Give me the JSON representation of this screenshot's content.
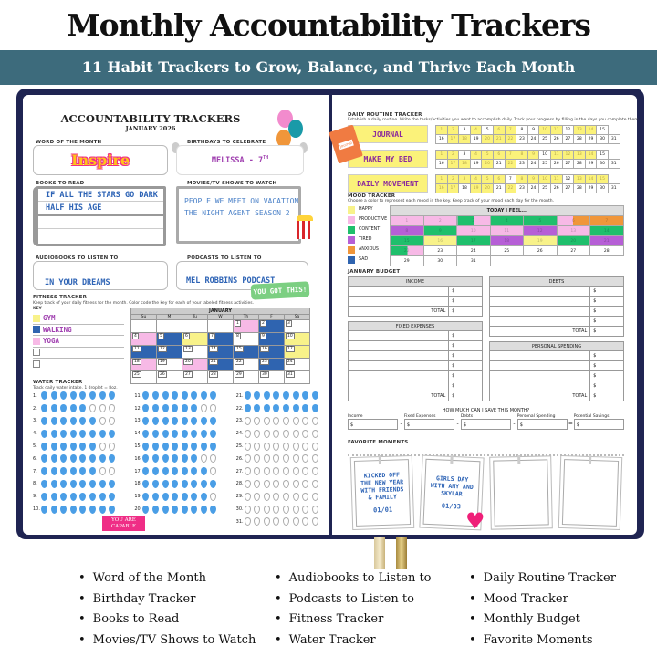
{
  "header": {
    "title": "Monthly Accountability Trackers",
    "subtitle": "11 Habit Trackers to Grow, Balance, and Thrive Each Month"
  },
  "left": {
    "title": "ACCOUNTABILITY TRACKERS",
    "month": "JANUARY 2026",
    "word": {
      "label": "WORD OF THE MONTH",
      "value": "Inspire"
    },
    "birthdays": {
      "label": "BIRTHDAYS TO CELEBRATE",
      "value": "MELISSA - 7",
      "sup": "TH"
    },
    "books": {
      "label": "BOOKS TO READ",
      "items": [
        "IF ALL THE STARS GO DARK",
        "HALF HIS AGE"
      ]
    },
    "movies": {
      "label": "MOVIES/TV SHOWS TO WATCH",
      "items": [
        "PEOPLE WE MEET ON VACATION",
        "THE NIGHT AGENT SEASON 2"
      ]
    },
    "audiobooks": {
      "label": "AUDIOBOOKS TO LISTEN TO",
      "value": "IN YOUR DREAMS"
    },
    "podcasts": {
      "label": "PODCASTS TO LISTEN TO",
      "value": "MEL ROBBINS PODCAST"
    },
    "sticker": "YOU GOT THIS!",
    "fitness": {
      "label": "FITNESS TRACKER",
      "desc": "Keep track of your daily fitness for the month. Color code the key for each of your labeled fitness activities.",
      "key_label": "KEY",
      "key": [
        {
          "name": "GYM",
          "color": "#f8f28a"
        },
        {
          "name": "WALKING",
          "color": "#2f64b0"
        },
        {
          "name": "YOGA",
          "color": "#f7b9e6"
        },
        {
          "name": "",
          "color": ""
        },
        {
          "name": "",
          "color": ""
        }
      ],
      "month": "JANUARY",
      "weekdays": [
        "Su",
        "M",
        "Tu",
        "W",
        "Th",
        "F",
        "Sa"
      ],
      "first_weekday": 4,
      "days": {
        "1": "YOGA",
        "2": "WALKING",
        "4": "YOGA",
        "5": "WALKING",
        "6": "GYM",
        "7": "WALKING",
        "9": "WALKING",
        "10": "GYM",
        "11": "WALKING",
        "12": "WALKING",
        "14": "WALKING",
        "15": "WALKING",
        "16": "WALKING",
        "17": "GYM",
        "18": "YOGA",
        "20": "YOGA",
        "21": "WALKING",
        "23": "WALKING"
      }
    },
    "water": {
      "label": "WATER TRACKER",
      "desc": "Track daily water intake. 1 droplet = 8oz.",
      "droplets_per_day": 8,
      "filled": [
        8,
        5,
        6,
        8,
        6,
        8,
        6,
        8,
        8,
        8,
        8,
        6,
        8,
        8,
        8,
        6,
        7,
        8,
        7,
        8,
        8,
        8,
        0,
        0,
        0,
        0,
        0,
        0,
        0,
        0,
        0
      ]
    },
    "badge": "YOU ARE CAPABLE"
  },
  "right": {
    "routine": {
      "label": "DAILY ROUTINE TRACKER",
      "desc": "Establish a daily routine. Write the tasks/activities you want to accomplish daily. Track your progress by filling in the days you complete them.",
      "book_label": "Journal",
      "habits": [
        {
          "name": "JOURNAL",
          "done": [
            1,
            2,
            4,
            6,
            7,
            10,
            11,
            13,
            14,
            17,
            18,
            20,
            21,
            22
          ]
        },
        {
          "name": "MAKE MY BED",
          "done": [
            1,
            2,
            4,
            5,
            6,
            7,
            8,
            9,
            11,
            12,
            13,
            14,
            17,
            18,
            20,
            22
          ]
        },
        {
          "name": "DAILY MOVEMENT",
          "done": [
            1,
            2,
            3,
            4,
            5,
            6,
            8,
            9,
            10,
            11,
            13,
            14,
            15,
            16,
            17,
            19,
            20,
            22
          ]
        }
      ]
    },
    "mood": {
      "label": "MOOD TRACKER",
      "desc": "Choose a color to represent each mood in the key. Keep track of your mood each day for the month.",
      "header": "TODAY I FEEL...",
      "key": [
        {
          "name": "HAPPY",
          "color": "#f8f28a"
        },
        {
          "name": "PRODUCTIVE",
          "color": "#f7b9e6"
        },
        {
          "name": "CONTENT",
          "color": "#1fbf6c"
        },
        {
          "name": "TIRED",
          "color": "#b65fd6"
        },
        {
          "name": "ANXIOUS",
          "color": "#f0963a"
        },
        {
          "name": "SAD",
          "color": "#2f64b0"
        }
      ],
      "days": [
        [
          "PRODUCTIVE"
        ],
        [
          "PRODUCTIVE"
        ],
        [
          "CONTENT",
          "PRODUCTIVE"
        ],
        [
          "CONTENT"
        ],
        [
          "CONTENT"
        ],
        [
          "PRODUCTIVE",
          "ANXIOUS"
        ],
        [
          "ANXIOUS"
        ],
        [
          "TIRED"
        ],
        [
          "CONTENT"
        ],
        [
          "PRODUCTIVE"
        ],
        [
          "PRODUCTIVE"
        ],
        [
          "TIRED"
        ],
        [
          "PRODUCTIVE"
        ],
        [
          "CONTENT"
        ],
        [
          "CONTENT"
        ],
        [
          "HAPPY"
        ],
        [
          "CONTENT"
        ],
        [
          "TIRED"
        ],
        [
          "HAPPY"
        ],
        [
          "CONTENT"
        ],
        [
          "TIRED"
        ],
        [
          "CONTENT",
          "PRODUCTIVE"
        ],
        [],
        [],
        [],
        [],
        [],
        [],
        [],
        [],
        []
      ]
    },
    "budget": {
      "label": "JANUARY BUDGET",
      "currency": "$",
      "total_label": "TOTAL",
      "income": {
        "title": "INCOME",
        "rows": 2
      },
      "fixed": {
        "title": "FIXED EXPENSES",
        "rows": 6
      },
      "debts": {
        "title": "DEBTS",
        "rows": 4
      },
      "personal": {
        "title": "PERSONAL SPENDING",
        "rows": 4
      }
    },
    "savings": {
      "title": "HOW MUCH CAN I SAVE THIS MONTH?",
      "fields": [
        "Income",
        "Fixed Expenses",
        "Debts",
        "Personal Spending",
        "Potential Savings"
      ],
      "ops": [
        "-",
        "-",
        "-",
        "="
      ]
    },
    "moments": {
      "label": "FAVORITE MOMENTS",
      "photos": [
        {
          "text": "KICKED OFF THE NEW YEAR WITH FRIENDS & FAMILY",
          "date": "01/01"
        },
        {
          "text": "GIRLS DAY WITH AMY AND SKYLAR",
          "date": "01/03"
        },
        {
          "text": "",
          "date": ""
        },
        {
          "text": "",
          "date": ""
        }
      ]
    }
  },
  "features": [
    [
      "Word of the Month",
      "Birthday Tracker",
      "Books to Read",
      "Movies/TV Shows to Watch"
    ],
    [
      "Audiobooks to Listen to",
      "Podcasts to Listen to",
      "Fitness Tracker",
      "Water Tracker"
    ],
    [
      "Daily Routine Tracker",
      "Mood  Tracker",
      "Monthly Budget",
      "Favorite Moments"
    ]
  ],
  "colors": {
    "band": "#3d6b7c",
    "cover": "#1f2452",
    "handwriting": "#2d63b5",
    "water": "#4a9ee6",
    "badge": "#ef2d86"
  }
}
